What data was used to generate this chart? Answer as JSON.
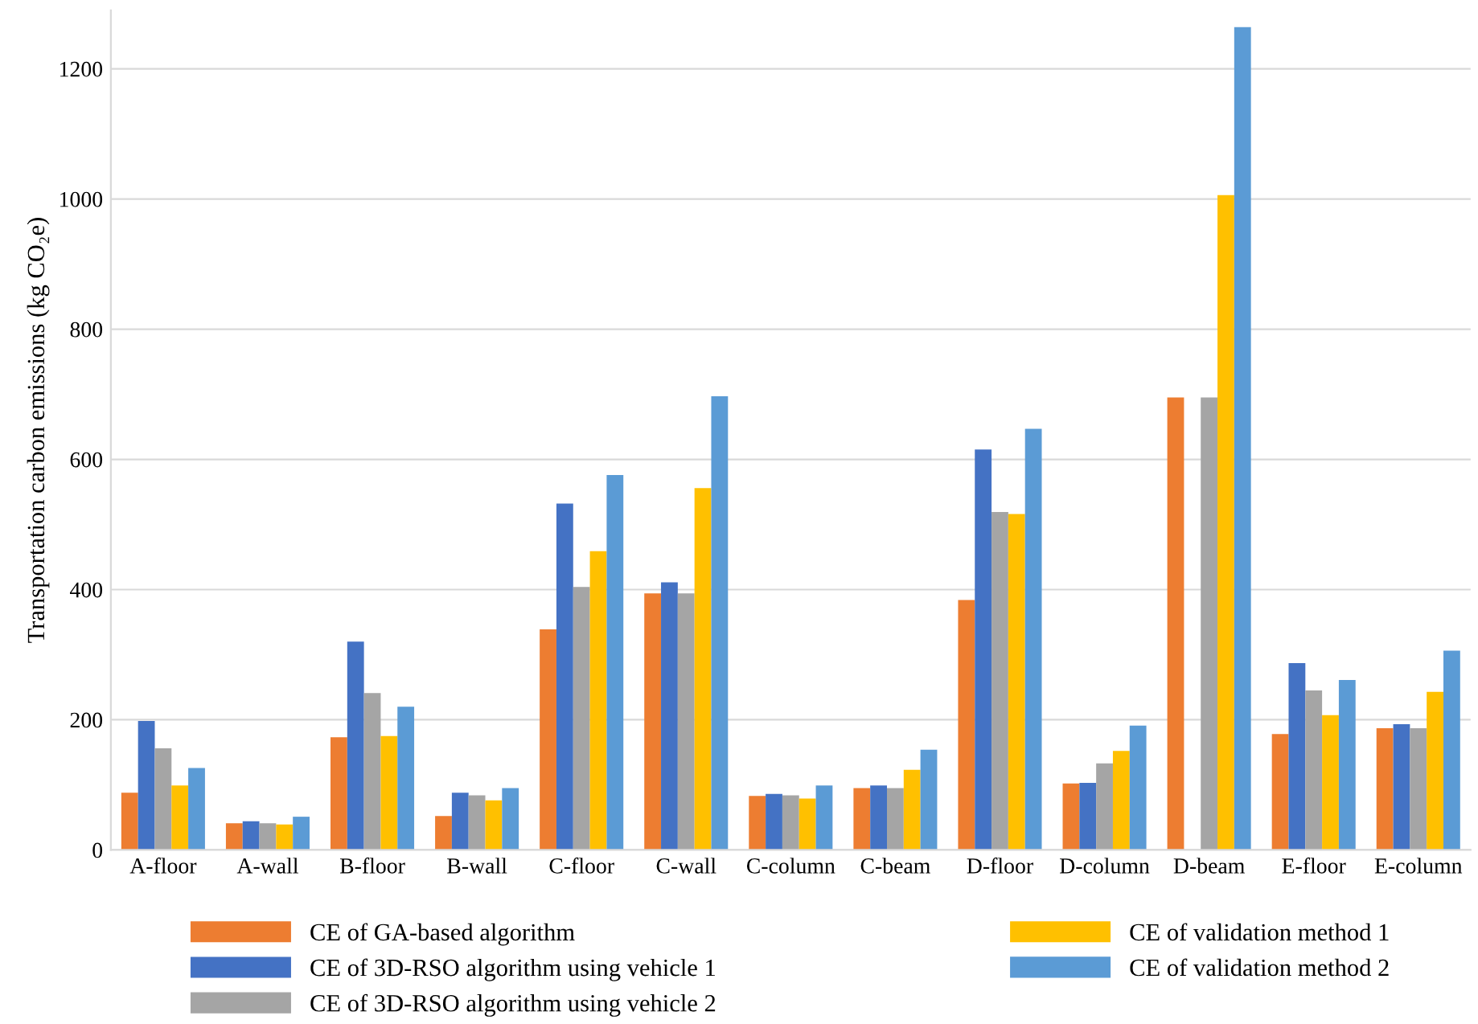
{
  "chart_data": {
    "type": "bar",
    "ylabel": "Transportation carbon emissions (kg CO₂e)",
    "categories": [
      "A-floor",
      "A-wall",
      "B-floor",
      "B-wall",
      "C-floor",
      "C-wall",
      "C-column",
      "C-beam",
      "D-floor",
      "D-column",
      "D-beam",
      "E-floor",
      "E-column"
    ],
    "series": [
      {
        "name": "CE of GA-based algorithm",
        "color": "#ed7d31",
        "values": [
          88,
          41,
          173,
          52,
          339,
          394,
          83,
          95,
          384,
          102,
          695,
          178,
          187
        ]
      },
      {
        "name": "CE of 3D-RSO algorithm using vehicle 1",
        "color": "#4472c4",
        "values": [
          198,
          44,
          320,
          88,
          532,
          411,
          86,
          99,
          615,
          103,
          0,
          287,
          193
        ]
      },
      {
        "name": "CE of 3D-RSO algorithm using vehicle 2",
        "color": "#a5a5a5",
        "values": [
          156,
          41,
          241,
          84,
          404,
          394,
          84,
          95,
          519,
          133,
          695,
          245,
          187
        ]
      },
      {
        "name": "CE of validation method 1",
        "color": "#ffc000",
        "values": [
          99,
          39,
          175,
          76,
          459,
          556,
          79,
          123,
          516,
          152,
          1006,
          207,
          243
        ]
      },
      {
        "name": "CE of validation method 2",
        "color": "#5b9bd5",
        "values": [
          126,
          51,
          220,
          95,
          576,
          697,
          99,
          154,
          647,
          191,
          1264,
          261,
          306
        ]
      }
    ],
    "ylim": [
      0,
      1290
    ],
    "yticks": [
      0,
      200,
      400,
      600,
      800,
      1000,
      1200
    ],
    "grid": "y",
    "legend": "bottom"
  }
}
